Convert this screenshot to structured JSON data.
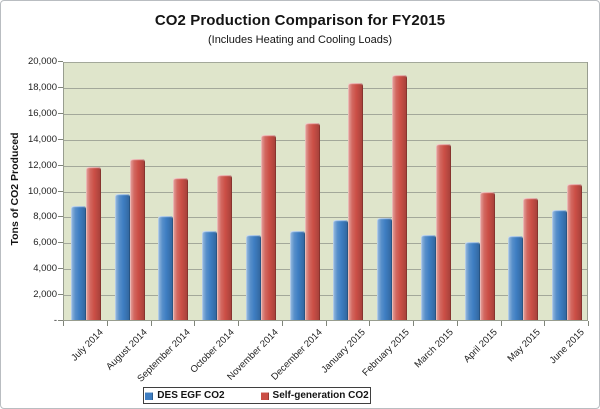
{
  "chart_data": {
    "type": "bar",
    "title": "CO2 Production Comparison for FY2015",
    "subtitle": "(Includes Heating and Cooling Loads)",
    "ylabel": "Tons of CO2 Produced",
    "xlabel": "",
    "categories": [
      "July 2014",
      "August 2014",
      "September 2014",
      "October 2014",
      "November 2014",
      "December 2014",
      "January 2015",
      "February 2015",
      "March 2015",
      "April 2015",
      "May 2015",
      "June 2015"
    ],
    "series": [
      {
        "name": "DES EGF CO2",
        "color": "#3e7ec2",
        "values": [
          8800,
          9700,
          8000,
          6900,
          6600,
          6900,
          7700,
          7900,
          6600,
          6000,
          6500,
          8500
        ]
      },
      {
        "name": "Self-generation CO2",
        "color": "#cb4f46",
        "values": [
          11800,
          12400,
          11000,
          11200,
          14300,
          15200,
          18300,
          18900,
          13600,
          9900,
          9400,
          10500
        ]
      }
    ],
    "ylim": [
      0,
      20000
    ],
    "ytick_step": 2000,
    "ytick_labels": [
      "-",
      "2,000",
      "4,000",
      "6,000",
      "8,000",
      "10,000",
      "12,000",
      "14,000",
      "16,000",
      "18,000",
      "20,000"
    ],
    "grid": true,
    "legend_position": "bottom",
    "plot_bg": "#dfe5cb",
    "gridline_color": "#a3a89a"
  }
}
